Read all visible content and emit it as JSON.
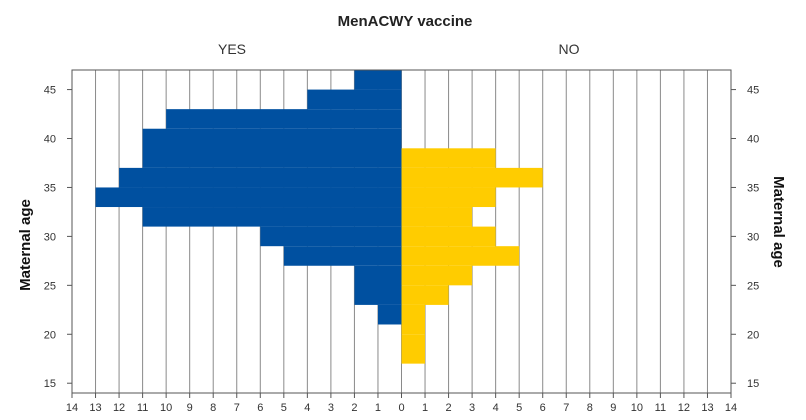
{
  "chart_data": {
    "type": "bar",
    "orientation": "horizontal-population-pyramid",
    "title": "MenACWY vaccine",
    "left_label": "YES",
    "right_label": "NO",
    "ylabel_left": "Maternal age",
    "ylabel_right": "Maternal age",
    "xlim": [
      -14,
      14
    ],
    "ylim": [
      14,
      47
    ],
    "x_ticks": [
      -14,
      -13,
      -12,
      -11,
      -10,
      -9,
      -8,
      -7,
      -6,
      -5,
      -4,
      -3,
      -2,
      -1,
      0,
      1,
      2,
      3,
      4,
      5,
      6,
      7,
      8,
      9,
      10,
      11,
      12,
      13,
      14
    ],
    "x_tick_labels": [
      "14",
      "13",
      "12",
      "11",
      "10",
      "9",
      "8",
      "7",
      "6",
      "5",
      "4",
      "3",
      "2",
      "1",
      "0",
      "1",
      "2",
      "3",
      "4",
      "5",
      "6",
      "7",
      "8",
      "9",
      "10",
      "11",
      "12",
      "13",
      "14"
    ],
    "y_ticks": [
      15,
      20,
      25,
      30,
      35,
      40,
      45
    ],
    "series": [
      {
        "name": "YES",
        "color": "#0050a0",
        "side": "left",
        "age_bins": [
          21,
          23,
          27,
          29,
          31,
          33,
          35,
          37,
          41,
          43,
          45
        ],
        "values": [
          1,
          2,
          5,
          6,
          11,
          13,
          12,
          11,
          10,
          4,
          2
        ]
      },
      {
        "name": "NO",
        "color": "#ffcc00",
        "side": "right",
        "age_bins": [
          17,
          20,
          23,
          25,
          27,
          29,
          31,
          33,
          35,
          37
        ],
        "values": [
          1,
          1,
          2,
          3,
          5,
          4,
          3,
          4,
          6,
          4
        ]
      }
    ]
  }
}
